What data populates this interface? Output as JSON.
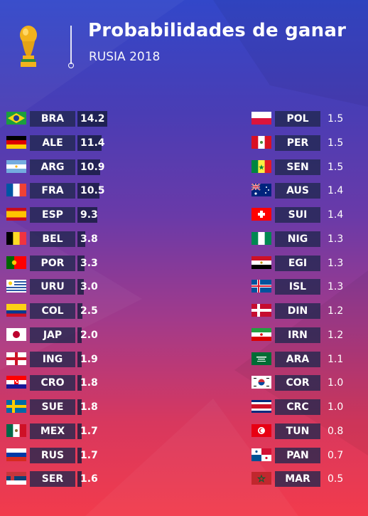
{
  "header": {
    "title": "Probabilidades de ganar",
    "subtitle": "RUSIA 2018"
  },
  "chart_data": {
    "type": "table",
    "title": "Probabilidades de ganar",
    "subtitle": "RUSIA 2018",
    "rows": [
      {
        "code": "BRA",
        "value": "14.2",
        "flag": "brazil-flag"
      },
      {
        "code": "ALE",
        "value": "11.4",
        "flag": "germany-flag"
      },
      {
        "code": "ARG",
        "value": "10.9",
        "flag": "argentina-flag"
      },
      {
        "code": "FRA",
        "value": "10.5",
        "flag": "france-flag"
      },
      {
        "code": "ESP",
        "value": "9.3",
        "flag": "spain-flag"
      },
      {
        "code": "BEL",
        "value": "3.8",
        "flag": "belgium-flag"
      },
      {
        "code": "POR",
        "value": "3.3",
        "flag": "portugal-flag"
      },
      {
        "code": "URU",
        "value": "3.0",
        "flag": "uruguay-flag"
      },
      {
        "code": "COL",
        "value": "2.5",
        "flag": "colombia-flag"
      },
      {
        "code": "JAP",
        "value": "2.0",
        "flag": "japan-flag"
      },
      {
        "code": "ING",
        "value": "1.9",
        "flag": "england-flag"
      },
      {
        "code": "CRO",
        "value": "1.8",
        "flag": "croatia-flag"
      },
      {
        "code": "SUE",
        "value": "1.8",
        "flag": "sweden-flag"
      },
      {
        "code": "MEX",
        "value": "1.7",
        "flag": "mexico-flag"
      },
      {
        "code": "RUS",
        "value": "1.7",
        "flag": "russia-flag"
      },
      {
        "code": "SER",
        "value": "1.6",
        "flag": "serbia-flag"
      },
      {
        "code": "POL",
        "value": "1.5",
        "flag": "poland-flag"
      },
      {
        "code": "PER",
        "value": "1.5",
        "flag": "peru-flag"
      },
      {
        "code": "SEN",
        "value": "1.5",
        "flag": "senegal-flag"
      },
      {
        "code": "AUS",
        "value": "1.4",
        "flag": "australia-flag"
      },
      {
        "code": "SUI",
        "value": "1.4",
        "flag": "switzerland-flag"
      },
      {
        "code": "NIG",
        "value": "1.3",
        "flag": "nigeria-flag"
      },
      {
        "code": "EGI",
        "value": "1.3",
        "flag": "egypt-flag"
      },
      {
        "code": "ISL",
        "value": "1.3",
        "flag": "iceland-flag"
      },
      {
        "code": "DIN",
        "value": "1.2",
        "flag": "denmark-flag"
      },
      {
        "code": "IRN",
        "value": "1.2",
        "flag": "iran-flag"
      },
      {
        "code": "ARA",
        "value": "1.1",
        "flag": "saudi-arabia-flag"
      },
      {
        "code": "COR",
        "value": "1.0",
        "flag": "south-korea-flag"
      },
      {
        "code": "CRC",
        "value": "1.0",
        "flag": "costa-rica-flag"
      },
      {
        "code": "TUN",
        "value": "0.8",
        "flag": "tunisia-flag"
      },
      {
        "code": "PAN",
        "value": "0.7",
        "flag": "panama-flag"
      },
      {
        "code": "MAR",
        "value": "0.5",
        "flag": "morocco-flag"
      }
    ]
  },
  "colors": {
    "background_top": "#3247c9",
    "background_bottom": "#f23b4c",
    "label_box": "#20284e",
    "trophy": "#f2b21c"
  }
}
